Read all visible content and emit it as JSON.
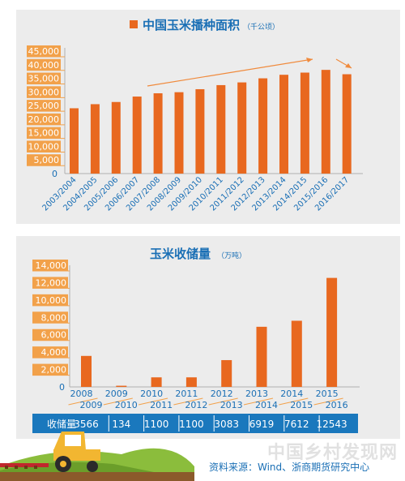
{
  "colors": {
    "bar": "#e8681f",
    "label_box": "#f2a14a",
    "text_blue": "#1a6fb5",
    "table_bg": "#1a78bd",
    "trend_arrow": "#f08a3c"
  },
  "chart_data": [
    {
      "type": "bar",
      "title": "中国玉米播种面积",
      "unit": "（千公顷）",
      "categories": [
        "2003/2004",
        "2004/2005",
        "2005/2006",
        "2006/2007",
        "2007/2008",
        "2008/2009",
        "2009/2010",
        "2010/2011",
        "2011/2012",
        "2012/2013",
        "2013/2014",
        "2014/2015",
        "2015/2016",
        "2016/2017"
      ],
      "values": [
        24000,
        25500,
        26300,
        28300,
        29500,
        29900,
        31000,
        32500,
        33500,
        35000,
        36300,
        37100,
        38100,
        36500
      ],
      "yticks": [
        "0",
        "5,000",
        "10,000",
        "15,000",
        "20,000",
        "25,000",
        "30,000",
        "35,000",
        "40,000",
        "45,000"
      ],
      "ylim": [
        0,
        45000
      ],
      "grid": false,
      "trend_arrows": true
    },
    {
      "type": "bar",
      "title": "玉米收储量",
      "unit": "（万吨）",
      "categories": [
        [
          "2008",
          "2009"
        ],
        [
          "2009",
          "2010"
        ],
        [
          "2010",
          "2011"
        ],
        [
          "2011",
          "2012"
        ],
        [
          "2012",
          "2013"
        ],
        [
          "2013",
          "2014"
        ],
        [
          "2014",
          "2015"
        ],
        [
          "2015",
          "2016"
        ]
      ],
      "values": [
        3566,
        134,
        1100,
        1100,
        3083,
        6919,
        7612,
        12543
      ],
      "value_labels": [
        "3566",
        "134",
        "1100",
        "1100",
        "3083",
        "6919",
        "7612",
        "12543"
      ],
      "yticks": [
        "0",
        "2,000",
        "4,000",
        "6,000",
        "8,000",
        "10,000",
        "12,000",
        "14,000"
      ],
      "ylim": [
        0,
        14000
      ],
      "grid": false,
      "table_header": "收储量"
    }
  ],
  "source": "资料来源：Wind、浙商期货研究中心",
  "watermark": "中国乡村发现网"
}
